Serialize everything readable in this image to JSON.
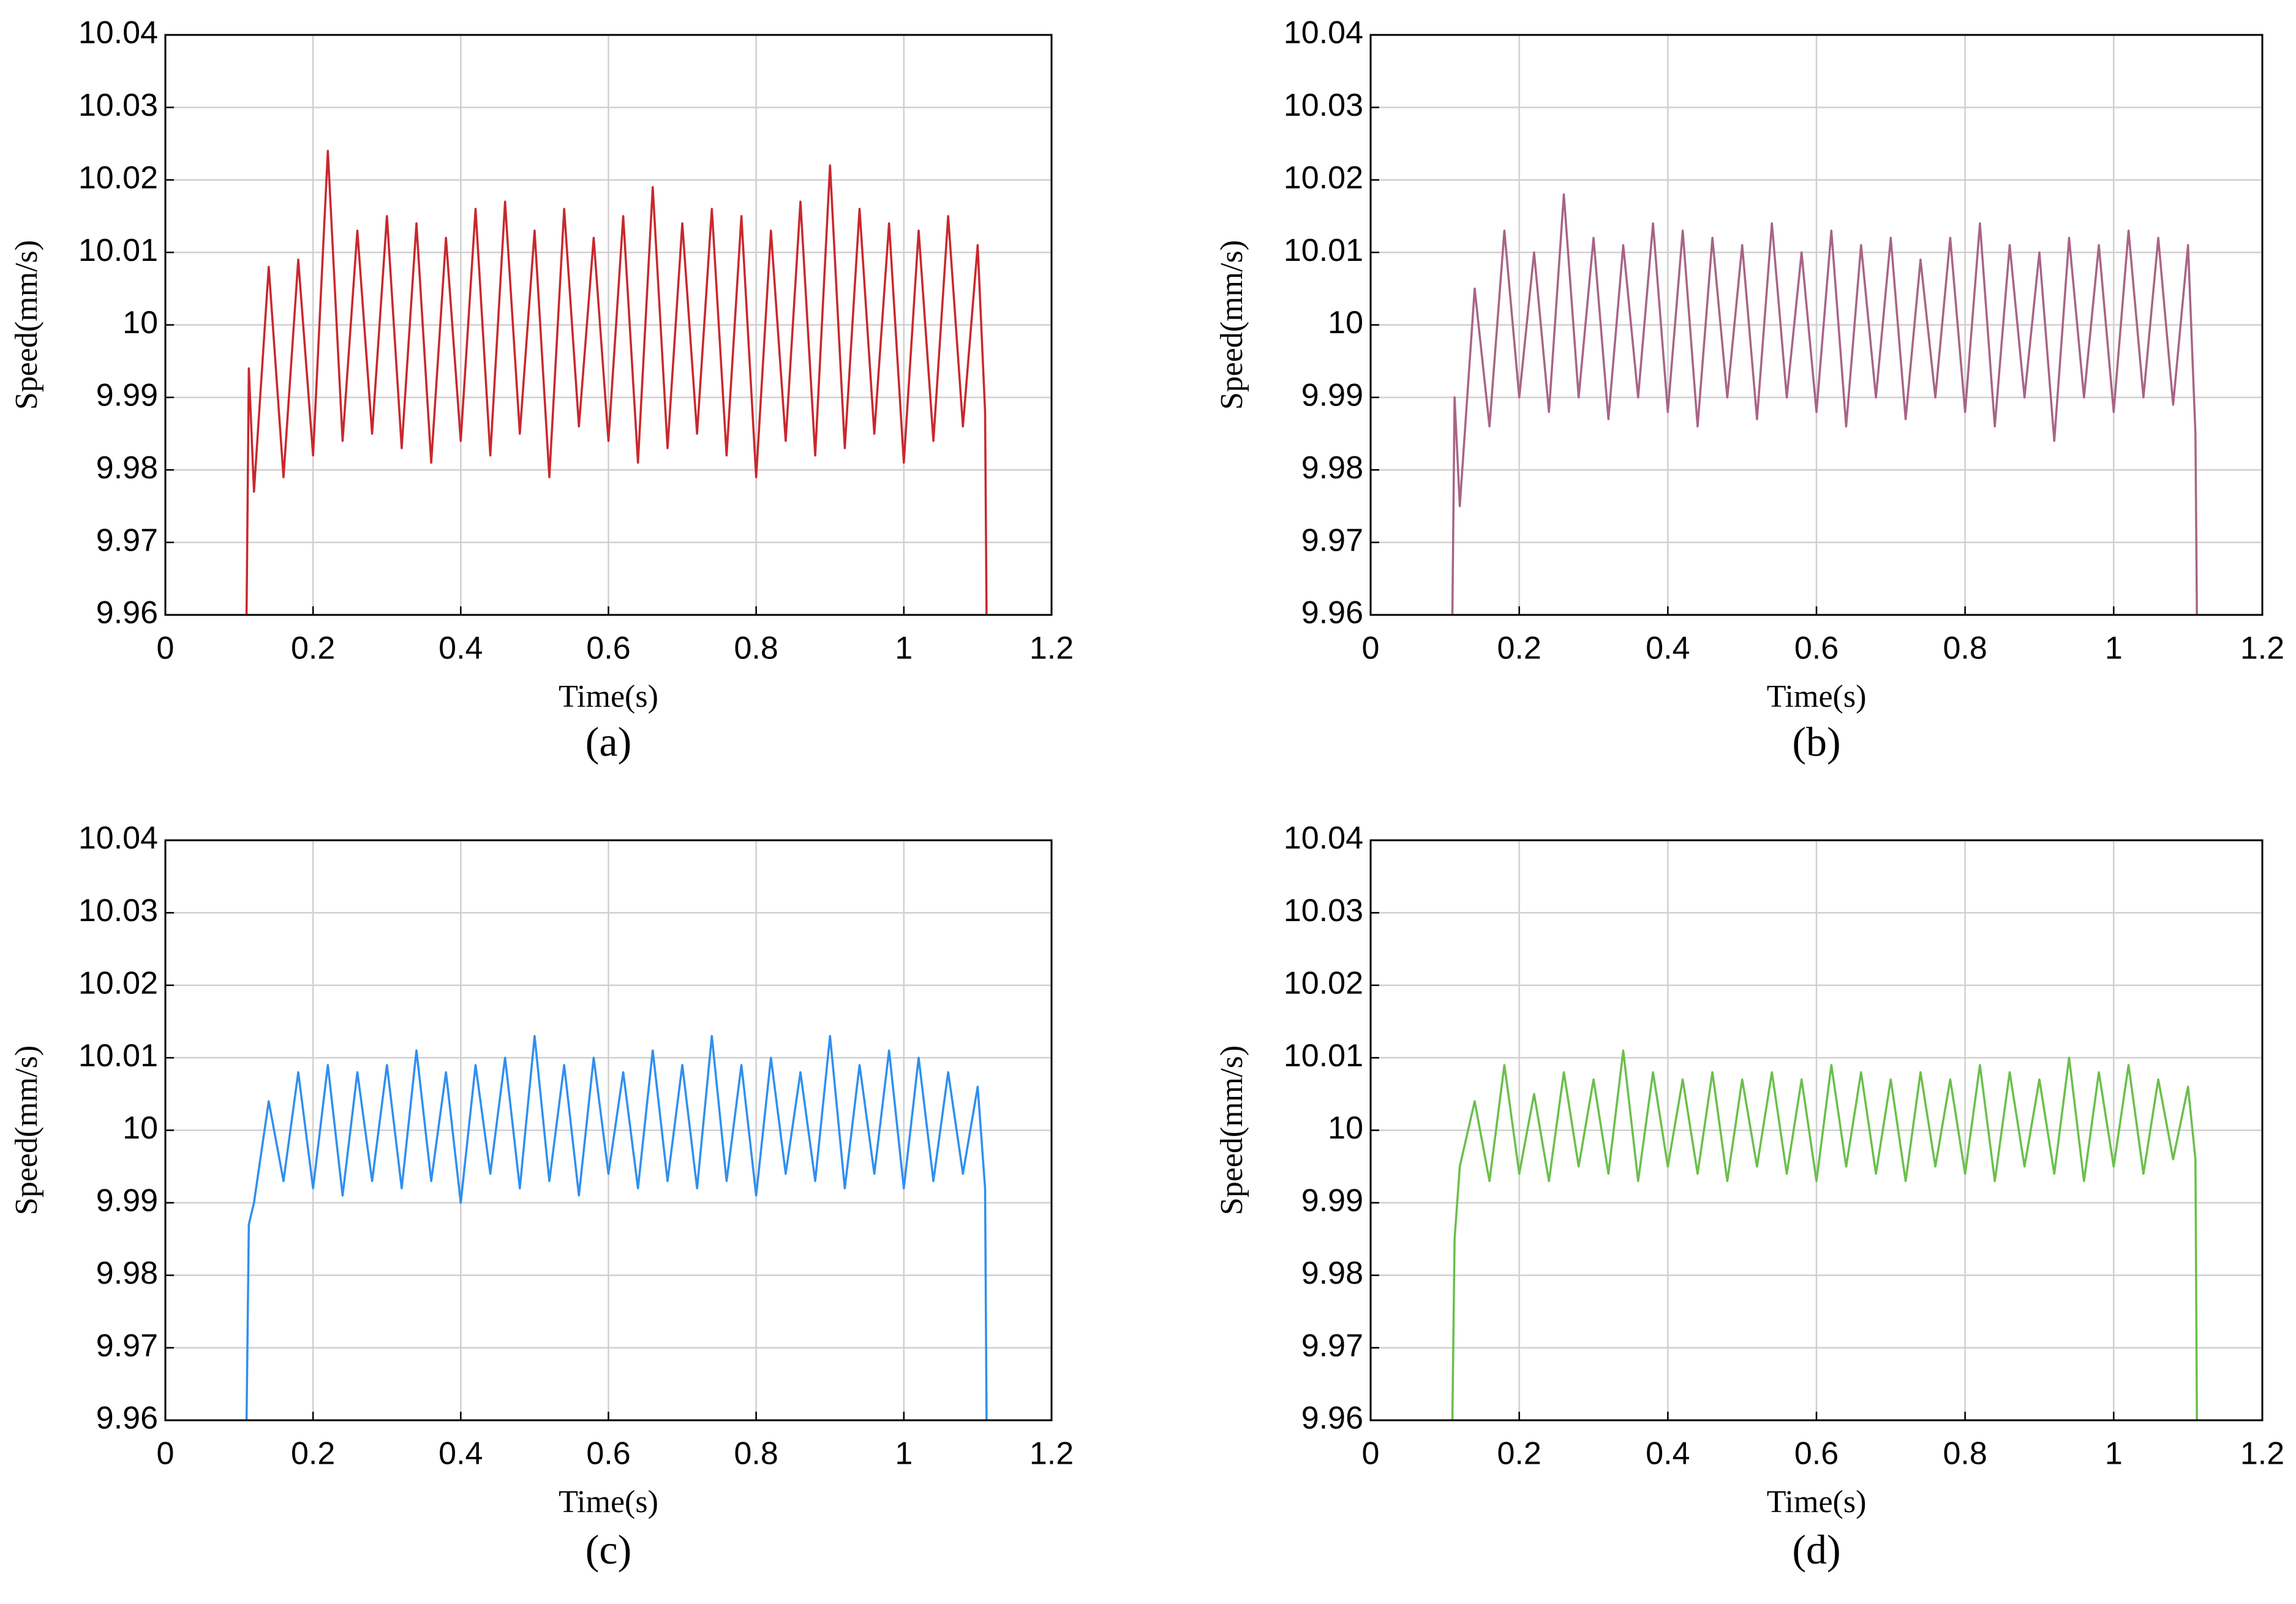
{
  "chart_data": [
    {
      "type": "line",
      "caption": "(a)",
      "xlabel": "Time(s)",
      "ylabel": "Speed(mm/s)",
      "color": "#c8282d",
      "grid": true,
      "xlim": [
        0,
        1.2
      ],
      "xticks": [
        0,
        0.2,
        0.4,
        0.6,
        0.8,
        1,
        1.2
      ],
      "ylim": [
        9.96,
        10.04
      ],
      "yticks": [
        9.96,
        9.97,
        9.98,
        9.99,
        10,
        10.01,
        10.02,
        10.03,
        10.04
      ],
      "x": [
        0.11,
        0.113,
        0.12,
        0.14,
        0.16,
        0.18,
        0.2,
        0.22,
        0.24,
        0.26,
        0.28,
        0.3,
        0.32,
        0.34,
        0.36,
        0.38,
        0.4,
        0.42,
        0.44,
        0.46,
        0.48,
        0.5,
        0.52,
        0.54,
        0.56,
        0.58,
        0.6,
        0.62,
        0.64,
        0.66,
        0.68,
        0.7,
        0.72,
        0.74,
        0.76,
        0.78,
        0.8,
        0.82,
        0.84,
        0.86,
        0.88,
        0.9,
        0.92,
        0.94,
        0.96,
        0.98,
        1,
        1.02,
        1.04,
        1.06,
        1.08,
        1.1,
        1.11,
        1.112
      ],
      "values": [
        9.96,
        9.994,
        9.977,
        10.008,
        9.979,
        10.009,
        9.982,
        10.024,
        9.984,
        10.013,
        9.985,
        10.015,
        9.983,
        10.014,
        9.981,
        10.012,
        9.984,
        10.016,
        9.982,
        10.017,
        9.985,
        10.013,
        9.979,
        10.016,
        9.986,
        10.012,
        9.984,
        10.015,
        9.981,
        10.019,
        9.983,
        10.014,
        9.985,
        10.016,
        9.982,
        10.015,
        9.979,
        10.013,
        9.984,
        10.017,
        9.982,
        10.022,
        9.983,
        10.016,
        9.985,
        10.014,
        9.981,
        10.013,
        9.984,
        10.015,
        9.986,
        10.011,
        9.988,
        9.96
      ]
    },
    {
      "type": "line",
      "caption": "(b)",
      "xlabel": "Time(s)",
      "ylabel": "Speed(mm/s)",
      "color": "#a86486",
      "grid": true,
      "xlim": [
        0,
        1.2
      ],
      "xticks": [
        0,
        0.2,
        0.4,
        0.6,
        0.8,
        1,
        1.2
      ],
      "ylim": [
        9.96,
        10.04
      ],
      "yticks": [
        9.96,
        9.97,
        9.98,
        9.99,
        10,
        10.01,
        10.02,
        10.03,
        10.04
      ],
      "x": [
        0.11,
        0.113,
        0.12,
        0.14,
        0.16,
        0.18,
        0.2,
        0.22,
        0.24,
        0.26,
        0.28,
        0.3,
        0.32,
        0.34,
        0.36,
        0.38,
        0.4,
        0.42,
        0.44,
        0.46,
        0.48,
        0.5,
        0.52,
        0.54,
        0.56,
        0.58,
        0.6,
        0.62,
        0.64,
        0.66,
        0.68,
        0.7,
        0.72,
        0.74,
        0.76,
        0.78,
        0.8,
        0.82,
        0.84,
        0.86,
        0.88,
        0.9,
        0.92,
        0.94,
        0.96,
        0.98,
        1,
        1.02,
        1.04,
        1.06,
        1.08,
        1.1,
        1.11,
        1.112
      ],
      "values": [
        9.96,
        9.99,
        9.975,
        10.005,
        9.986,
        10.013,
        9.99,
        10.01,
        9.988,
        10.018,
        9.99,
        10.012,
        9.987,
        10.011,
        9.99,
        10.014,
        9.988,
        10.013,
        9.986,
        10.012,
        9.99,
        10.011,
        9.987,
        10.014,
        9.99,
        10.01,
        9.988,
        10.013,
        9.986,
        10.011,
        9.99,
        10.012,
        9.987,
        10.009,
        9.99,
        10.012,
        9.988,
        10.014,
        9.986,
        10.011,
        9.99,
        10.01,
        9.984,
        10.012,
        9.99,
        10.011,
        9.988,
        10.013,
        9.99,
        10.012,
        9.989,
        10.011,
        9.985,
        9.96
      ]
    },
    {
      "type": "line",
      "caption": "(c)",
      "xlabel": "Time(s)",
      "ylabel": "Speed(mm/s)",
      "color": "#2f8ff0",
      "grid": true,
      "xlim": [
        0,
        1.2
      ],
      "xticks": [
        0,
        0.2,
        0.4,
        0.6,
        0.8,
        1,
        1.2
      ],
      "ylim": [
        9.96,
        10.04
      ],
      "yticks": [
        9.96,
        9.97,
        9.98,
        9.99,
        10,
        10.01,
        10.02,
        10.03,
        10.04
      ],
      "x": [
        0.11,
        0.113,
        0.12,
        0.14,
        0.16,
        0.18,
        0.2,
        0.22,
        0.24,
        0.26,
        0.28,
        0.3,
        0.32,
        0.34,
        0.36,
        0.38,
        0.4,
        0.42,
        0.44,
        0.46,
        0.48,
        0.5,
        0.52,
        0.54,
        0.56,
        0.58,
        0.6,
        0.62,
        0.64,
        0.66,
        0.68,
        0.7,
        0.72,
        0.74,
        0.76,
        0.78,
        0.8,
        0.82,
        0.84,
        0.86,
        0.88,
        0.9,
        0.92,
        0.94,
        0.96,
        0.98,
        1,
        1.02,
        1.04,
        1.06,
        1.08,
        1.1,
        1.11,
        1.112
      ],
      "values": [
        9.96,
        9.987,
        9.99,
        10.004,
        9.993,
        10.008,
        9.992,
        10.009,
        9.991,
        10.008,
        9.993,
        10.009,
        9.992,
        10.011,
        9.993,
        10.008,
        9.99,
        10.009,
        9.994,
        10.01,
        9.992,
        10.013,
        9.993,
        10.009,
        9.991,
        10.01,
        9.994,
        10.008,
        9.992,
        10.011,
        9.993,
        10.009,
        9.992,
        10.013,
        9.993,
        10.009,
        9.991,
        10.01,
        9.994,
        10.008,
        9.993,
        10.013,
        9.992,
        10.009,
        9.994,
        10.011,
        9.992,
        10.01,
        9.993,
        10.008,
        9.994,
        10.006,
        9.992,
        9.96
      ]
    },
    {
      "type": "line",
      "caption": "(d)",
      "xlabel": "Time(s)",
      "ylabel": "Speed(mm/s)",
      "color": "#6abf4b",
      "grid": true,
      "xlim": [
        0,
        1.2
      ],
      "xticks": [
        0,
        0.2,
        0.4,
        0.6,
        0.8,
        1,
        1.2
      ],
      "ylim": [
        9.96,
        10.04
      ],
      "yticks": [
        9.96,
        9.97,
        9.98,
        9.99,
        10,
        10.01,
        10.02,
        10.03,
        10.04
      ],
      "x": [
        0.11,
        0.113,
        0.12,
        0.14,
        0.16,
        0.18,
        0.2,
        0.22,
        0.24,
        0.26,
        0.28,
        0.3,
        0.32,
        0.34,
        0.36,
        0.38,
        0.4,
        0.42,
        0.44,
        0.46,
        0.48,
        0.5,
        0.52,
        0.54,
        0.56,
        0.58,
        0.6,
        0.62,
        0.64,
        0.66,
        0.68,
        0.7,
        0.72,
        0.74,
        0.76,
        0.78,
        0.8,
        0.82,
        0.84,
        0.86,
        0.88,
        0.9,
        0.92,
        0.94,
        0.96,
        0.98,
        1,
        1.02,
        1.04,
        1.06,
        1.08,
        1.1,
        1.11,
        1.112
      ],
      "values": [
        9.96,
        9.985,
        9.995,
        10.004,
        9.993,
        10.009,
        9.994,
        10.005,
        9.993,
        10.008,
        9.995,
        10.007,
        9.994,
        10.011,
        9.993,
        10.008,
        9.995,
        10.007,
        9.994,
        10.008,
        9.993,
        10.007,
        9.995,
        10.008,
        9.994,
        10.007,
        9.993,
        10.009,
        9.995,
        10.008,
        9.994,
        10.007,
        9.993,
        10.008,
        9.995,
        10.007,
        9.994,
        10.009,
        9.993,
        10.008,
        9.995,
        10.007,
        9.994,
        10.01,
        9.993,
        10.008,
        9.995,
        10.009,
        9.994,
        10.007,
        9.996,
        10.006,
        9.996,
        9.96
      ]
    }
  ]
}
